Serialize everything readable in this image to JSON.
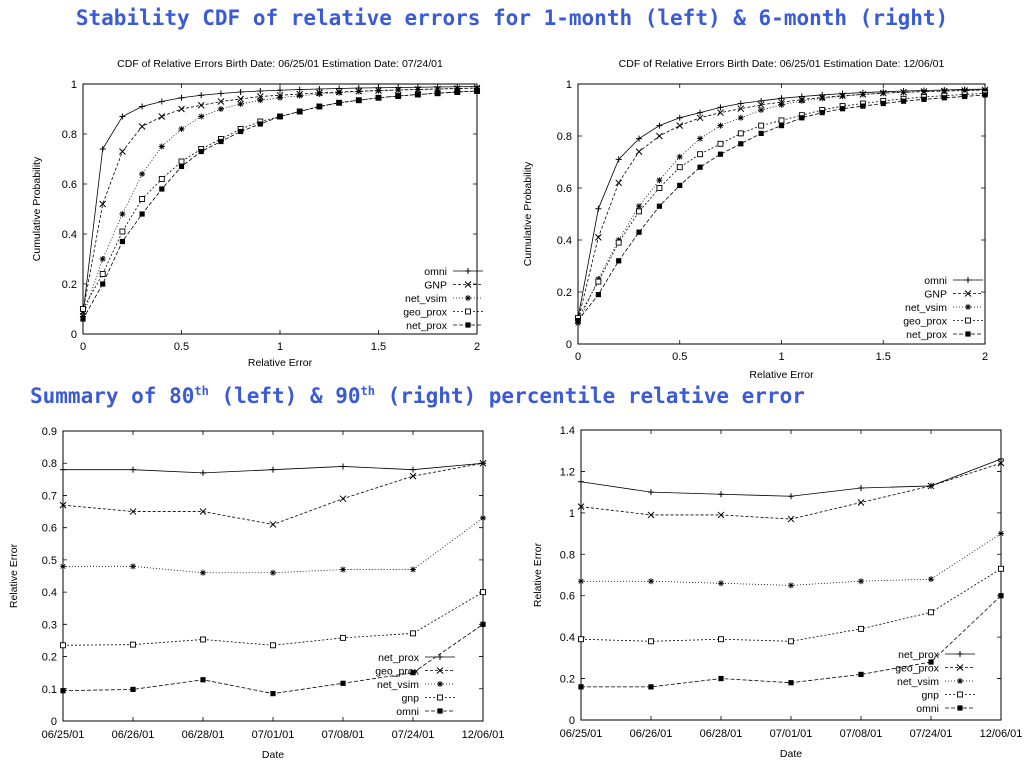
{
  "headings": {
    "top": "Stability CDF of relative errors for 1-month (left) & 6-month (right)",
    "bottom_pre": "Summary of 80",
    "bottom_sup1": "th",
    "bottom_mid": " (left) & 90",
    "bottom_sup2": "th",
    "bottom_post": " (right) percentile relative error"
  },
  "chart_data": [
    {
      "type": "line",
      "title": "CDF of Relative Errors Birth Date: 06/25/01 Estimation Date: 07/24/01",
      "xlabel": "Relative Error",
      "ylabel": "Cumulative Probability",
      "xlim": [
        0,
        2
      ],
      "ylim": [
        0,
        1
      ],
      "xticks": [
        "0",
        "0.5",
        "1",
        "1.5",
        "2"
      ],
      "yticks": [
        "0",
        "0.2",
        "0.4",
        "0.6",
        "0.8",
        "1"
      ],
      "grid": false,
      "legend": "bottom-right",
      "x": [
        0,
        0.1,
        0.2,
        0.3,
        0.4,
        0.5,
        0.6,
        0.7,
        0.8,
        0.9,
        1.0,
        1.1,
        1.2,
        1.3,
        1.4,
        1.5,
        1.6,
        1.7,
        1.8,
        1.9,
        2.0
      ],
      "series": [
        {
          "name": "omni",
          "marker": "plus",
          "values": [
            0.08,
            0.74,
            0.87,
            0.91,
            0.93,
            0.945,
            0.955,
            0.962,
            0.968,
            0.972,
            0.975,
            0.978,
            0.98,
            0.982,
            0.984,
            0.985,
            0.986,
            0.987,
            0.988,
            0.989,
            0.99
          ]
        },
        {
          "name": "GNP",
          "marker": "x",
          "values": [
            0.09,
            0.52,
            0.73,
            0.83,
            0.87,
            0.9,
            0.915,
            0.93,
            0.94,
            0.95,
            0.955,
            0.96,
            0.965,
            0.968,
            0.971,
            0.974,
            0.976,
            0.978,
            0.98,
            0.982,
            0.984
          ]
        },
        {
          "name": "net_vsim",
          "marker": "star",
          "values": [
            0.07,
            0.3,
            0.48,
            0.64,
            0.75,
            0.82,
            0.87,
            0.9,
            0.92,
            0.935,
            0.945,
            0.953,
            0.96,
            0.965,
            0.97,
            0.973,
            0.976,
            0.978,
            0.98,
            0.982,
            0.984
          ]
        },
        {
          "name": "geo_prox",
          "marker": "square-open",
          "values": [
            0.1,
            0.24,
            0.41,
            0.54,
            0.62,
            0.69,
            0.74,
            0.78,
            0.82,
            0.85,
            0.87,
            0.89,
            0.91,
            0.925,
            0.935,
            0.945,
            0.952,
            0.958,
            0.963,
            0.968,
            0.972
          ]
        },
        {
          "name": "net_prox",
          "marker": "square-filled",
          "values": [
            0.06,
            0.2,
            0.37,
            0.48,
            0.58,
            0.67,
            0.73,
            0.77,
            0.81,
            0.84,
            0.87,
            0.89,
            0.91,
            0.925,
            0.935,
            0.945,
            0.952,
            0.958,
            0.963,
            0.968,
            0.972
          ]
        }
      ]
    },
    {
      "type": "line",
      "title": "CDF of Relative Errors Birth Date: 06/25/01 Estimation Date: 12/06/01",
      "xlabel": "Relative Error",
      "ylabel": "Cumulative Probability",
      "xlim": [
        0,
        2
      ],
      "ylim": [
        0,
        1
      ],
      "xticks": [
        "0",
        "0.5",
        "1",
        "1.5",
        "2"
      ],
      "yticks": [
        "0",
        "0.2",
        "0.4",
        "0.6",
        "0.8",
        "1"
      ],
      "grid": false,
      "legend": "bottom-right",
      "x": [
        0,
        0.1,
        0.2,
        0.3,
        0.4,
        0.5,
        0.6,
        0.7,
        0.8,
        0.9,
        1.0,
        1.1,
        1.2,
        1.3,
        1.4,
        1.5,
        1.6,
        1.7,
        1.8,
        1.9,
        2.0
      ],
      "series": [
        {
          "name": "omni",
          "marker": "plus",
          "values": [
            0.1,
            0.52,
            0.71,
            0.79,
            0.84,
            0.87,
            0.89,
            0.91,
            0.925,
            0.935,
            0.945,
            0.952,
            0.958,
            0.963,
            0.967,
            0.97,
            0.973,
            0.975,
            0.977,
            0.979,
            0.98
          ]
        },
        {
          "name": "GNP",
          "marker": "x",
          "values": [
            0.09,
            0.41,
            0.62,
            0.74,
            0.8,
            0.84,
            0.87,
            0.89,
            0.905,
            0.92,
            0.93,
            0.94,
            0.948,
            0.955,
            0.96,
            0.965,
            0.968,
            0.971,
            0.973,
            0.975,
            0.977
          ]
        },
        {
          "name": "net_vsim",
          "marker": "star",
          "values": [
            0.08,
            0.25,
            0.4,
            0.53,
            0.63,
            0.72,
            0.79,
            0.84,
            0.87,
            0.9,
            0.92,
            0.935,
            0.945,
            0.953,
            0.96,
            0.965,
            0.968,
            0.971,
            0.973,
            0.975,
            0.977
          ]
        },
        {
          "name": "geo_prox",
          "marker": "square-open",
          "values": [
            0.1,
            0.24,
            0.39,
            0.51,
            0.6,
            0.68,
            0.73,
            0.77,
            0.81,
            0.84,
            0.86,
            0.88,
            0.9,
            0.915,
            0.925,
            0.935,
            0.943,
            0.95,
            0.955,
            0.96,
            0.964
          ]
        },
        {
          "name": "net_prox",
          "marker": "square-filled",
          "values": [
            0.09,
            0.19,
            0.32,
            0.43,
            0.53,
            0.61,
            0.68,
            0.73,
            0.77,
            0.81,
            0.84,
            0.87,
            0.89,
            0.905,
            0.915,
            0.925,
            0.934,
            0.941,
            0.947,
            0.952,
            0.958
          ]
        }
      ]
    },
    {
      "type": "line",
      "title": "",
      "xlabel": "Date",
      "ylabel": "Relative Error",
      "ylim": [
        0,
        0.9
      ],
      "categories": [
        "06/25/01",
        "06/26/01",
        "06/28/01",
        "07/01/01",
        "07/08/01",
        "07/24/01",
        "12/06/01"
      ],
      "yticks": [
        "0",
        "0.1",
        "0.2",
        "0.3",
        "0.4",
        "0.5",
        "0.6",
        "0.7",
        "0.8",
        "0.9"
      ],
      "grid": false,
      "legend": "bottom-right",
      "series": [
        {
          "name": "net_prox",
          "marker": "plus",
          "values": [
            0.78,
            0.78,
            0.77,
            0.78,
            0.79,
            0.78,
            0.8
          ]
        },
        {
          "name": "geo_prox",
          "marker": "x",
          "values": [
            0.67,
            0.65,
            0.65,
            0.61,
            0.69,
            0.76,
            0.8
          ]
        },
        {
          "name": "net_vsim",
          "marker": "star",
          "values": [
            0.48,
            0.48,
            0.46,
            0.46,
            0.47,
            0.47,
            0.63
          ]
        },
        {
          "name": "gnp",
          "marker": "square-open",
          "values": [
            0.235,
            0.237,
            0.253,
            0.235,
            0.258,
            0.272,
            0.4
          ]
        },
        {
          "name": "omni",
          "marker": "square-filled",
          "values": [
            0.094,
            0.098,
            0.128,
            0.085,
            0.117,
            0.15,
            0.3
          ]
        }
      ]
    },
    {
      "type": "line",
      "title": "",
      "xlabel": "Date",
      "ylabel": "Relative Error",
      "ylim": [
        0,
        1.4
      ],
      "categories": [
        "06/25/01",
        "06/26/01",
        "06/28/01",
        "07/01/01",
        "07/08/01",
        "07/24/01",
        "12/06/01"
      ],
      "yticks": [
        "0",
        "0.2",
        "0.4",
        "0.6",
        "0.8",
        "1",
        "1.2",
        "1.4"
      ],
      "grid": false,
      "legend": "bottom-right",
      "series": [
        {
          "name": "net_prox",
          "marker": "plus",
          "values": [
            1.15,
            1.1,
            1.09,
            1.08,
            1.12,
            1.13,
            1.26
          ]
        },
        {
          "name": "geo_prox",
          "marker": "x",
          "values": [
            1.03,
            0.99,
            0.99,
            0.97,
            1.05,
            1.13,
            1.24
          ]
        },
        {
          "name": "net_vsim",
          "marker": "star",
          "values": [
            0.67,
            0.67,
            0.66,
            0.65,
            0.67,
            0.68,
            0.9
          ]
        },
        {
          "name": "gnp",
          "marker": "square-open",
          "values": [
            0.39,
            0.38,
            0.39,
            0.38,
            0.44,
            0.52,
            0.73
          ]
        },
        {
          "name": "omni",
          "marker": "square-filled",
          "values": [
            0.16,
            0.16,
            0.2,
            0.18,
            0.22,
            0.28,
            0.6
          ]
        }
      ]
    }
  ]
}
